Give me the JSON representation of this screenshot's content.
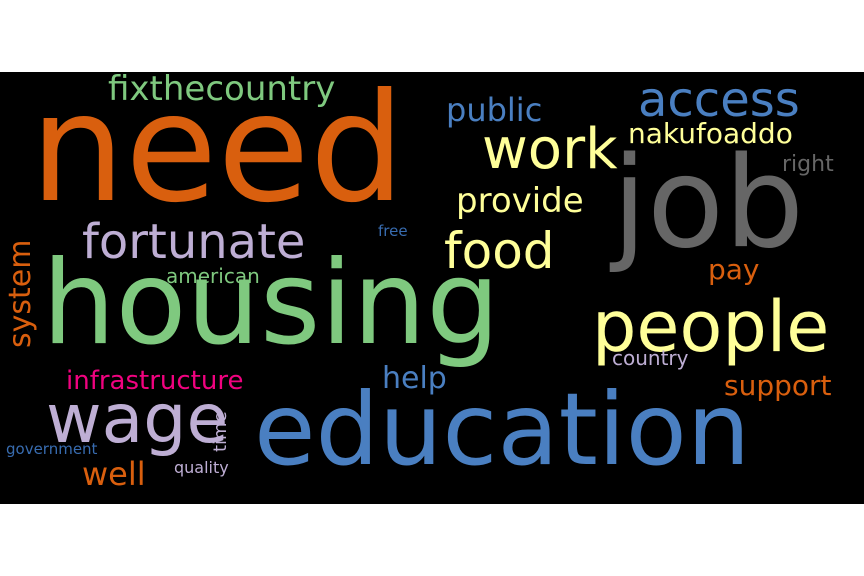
{
  "wordcloud": {
    "background": "#000000",
    "words": [
      {
        "text": "need",
        "color": "#D95F0E"
      },
      {
        "text": "job",
        "color": "#666666"
      },
      {
        "text": "housing",
        "color": "#7FC97F"
      },
      {
        "text": "education",
        "color": "#4A7FC1"
      },
      {
        "text": "people",
        "color": "#FFFF99"
      },
      {
        "text": "wage",
        "color": "#BEAED4"
      },
      {
        "text": "fortunate",
        "color": "#BEAED4"
      },
      {
        "text": "work",
        "color": "#FFFF99"
      },
      {
        "text": "access",
        "color": "#4A7FC1"
      },
      {
        "text": "food",
        "color": "#FFFF99"
      },
      {
        "text": "fixthecountry",
        "color": "#7FC97F"
      },
      {
        "text": "infrastructure",
        "color": "#F0027F"
      },
      {
        "text": "support",
        "color": "#D95F0E"
      },
      {
        "text": "provide",
        "color": "#FFFF99"
      },
      {
        "text": "nakufoaddo",
        "color": "#FFFF99"
      },
      {
        "text": "public",
        "color": "#4A7FC1"
      },
      {
        "text": "system",
        "color": "#D95F0E"
      },
      {
        "text": "help",
        "color": "#4A7FC1"
      },
      {
        "text": "well",
        "color": "#D95F0E"
      },
      {
        "text": "pay",
        "color": "#D95F0E"
      },
      {
        "text": "american",
        "color": "#7FC97F"
      },
      {
        "text": "right",
        "color": "#666666"
      },
      {
        "text": "country",
        "color": "#BEAED4"
      },
      {
        "text": "time",
        "color": "#BEAED4"
      },
      {
        "text": "quality",
        "color": "#BEAED4"
      },
      {
        "text": "government",
        "color": "#386CB0"
      },
      {
        "text": "free",
        "color": "#386CB0"
      }
    ]
  }
}
